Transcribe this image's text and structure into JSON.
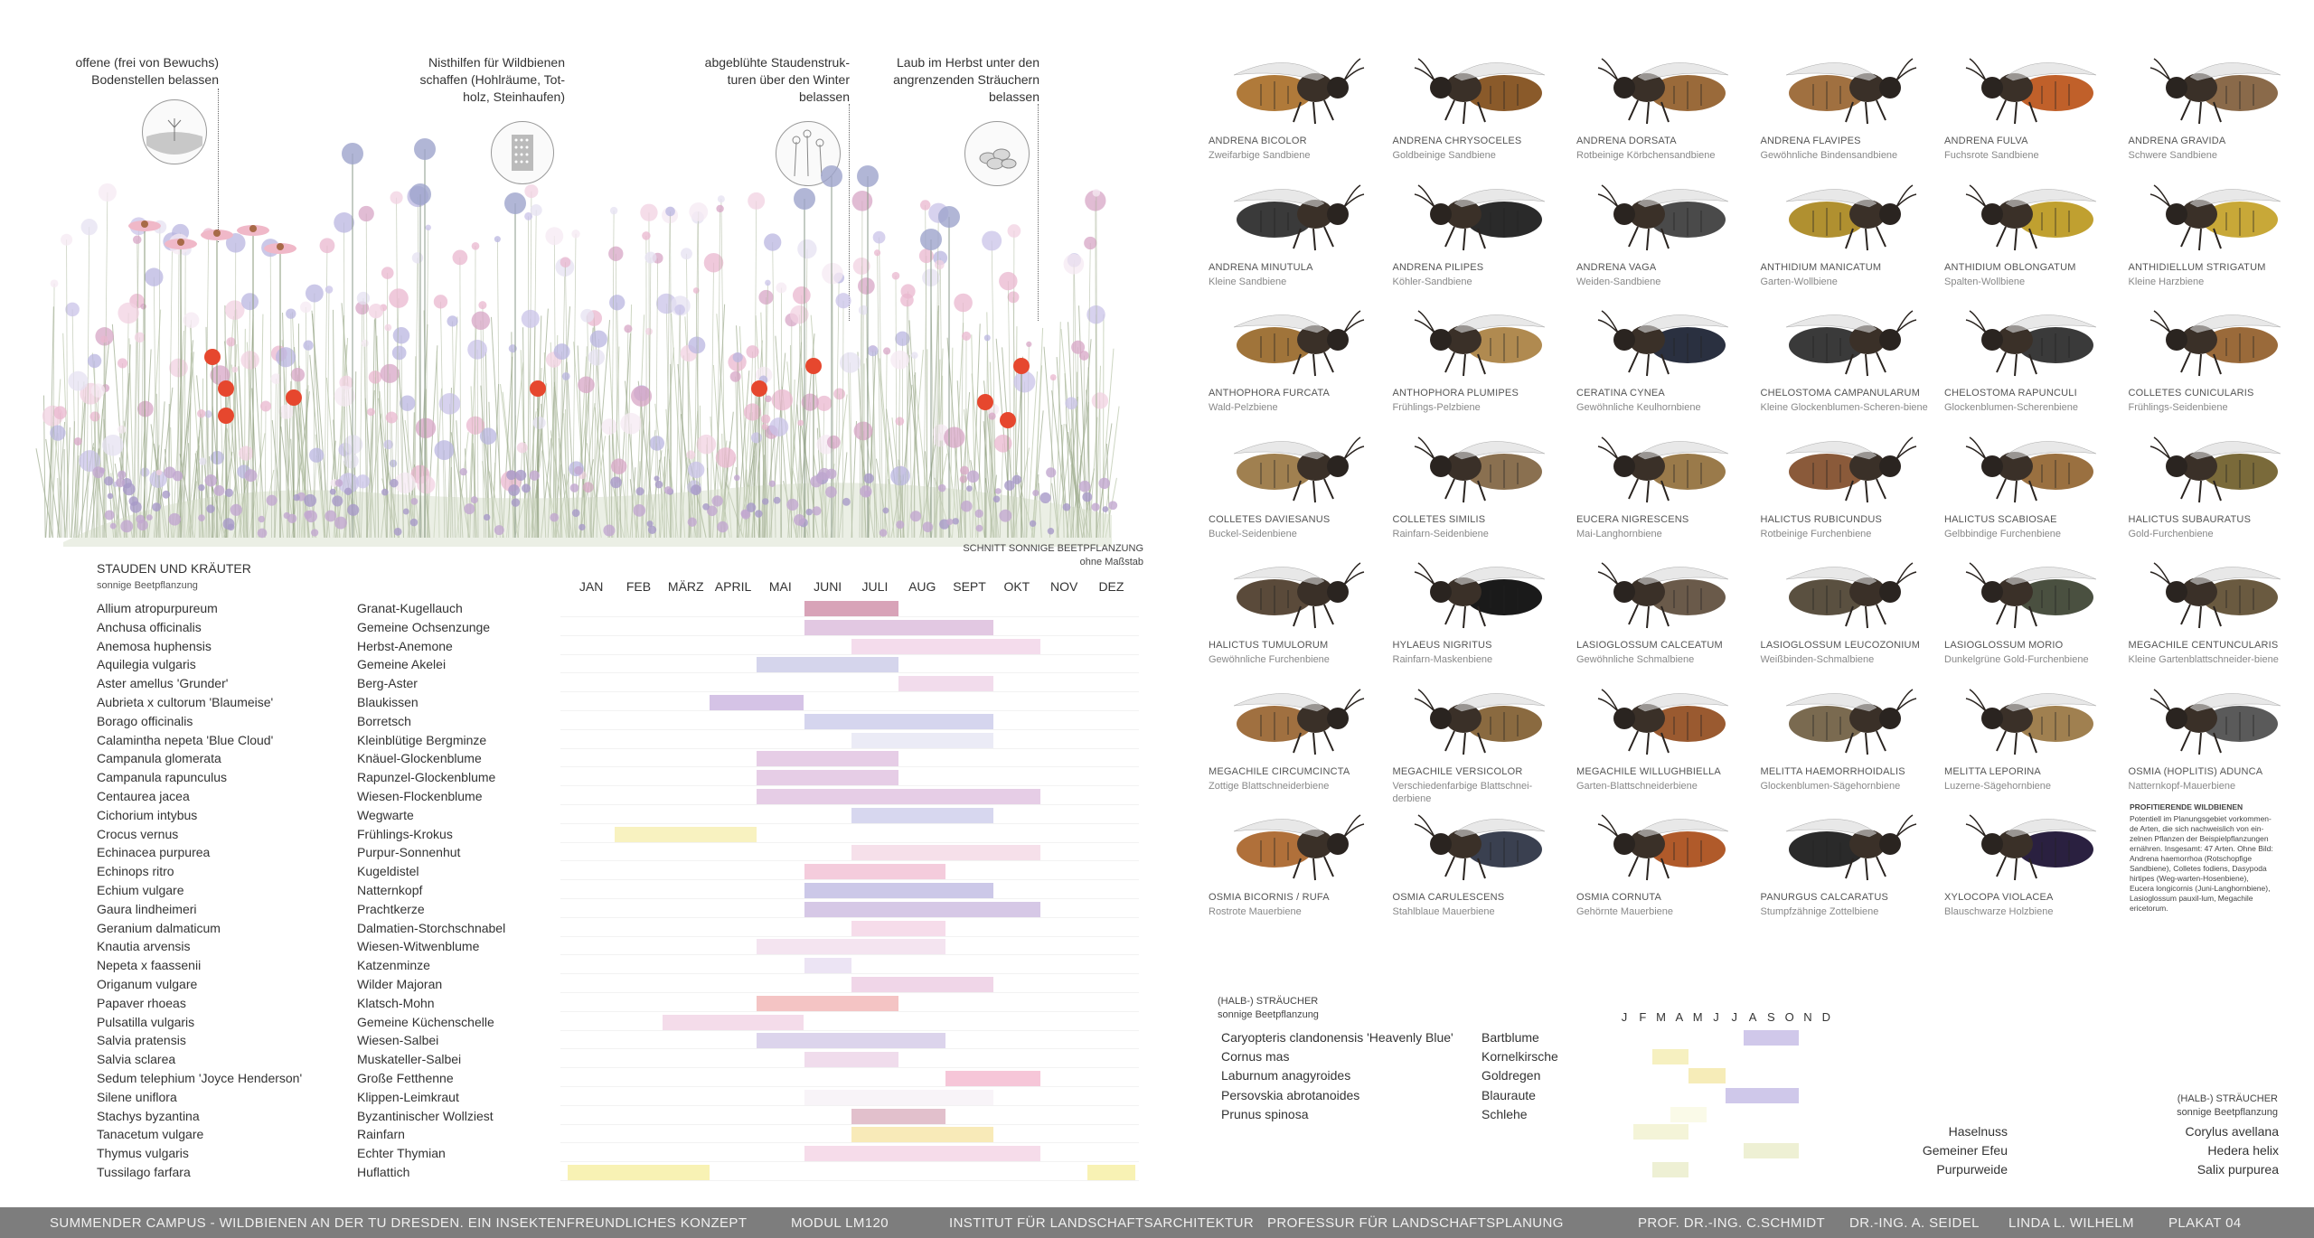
{
  "annotations": [
    {
      "lines": [
        "offene (frei von Bewuchs)",
        "Bodenstellen belassen"
      ],
      "icon": "soil-icon"
    },
    {
      "lines": [
        "Nisthilfen für Wildbienen",
        "schaffen (Hohlräume, Tot-",
        "holz, Steinhaufen)"
      ],
      "icon": "nest-aid-icon"
    },
    {
      "lines": [
        "abgeblühte Staudenstruk-",
        "turen über den Winter",
        "belassen"
      ],
      "icon": "seedhead-icon"
    },
    {
      "lines": [
        "Laub im Herbst unter den",
        "angrenzenden Sträuchern",
        "belassen"
      ],
      "icon": "leaf-litter-icon"
    }
  ],
  "section": {
    "caption_line1": "SCHNITT SONNIGE BEETPFLANZUNG",
    "caption_line2": "ohne Maßstab"
  },
  "perennials": {
    "title": "STAUDEN UND KRÄUTER",
    "subtitle": "sonnige Beetpflanzung",
    "months": [
      "JAN",
      "FEB",
      "MÄRZ",
      "APRIL",
      "MAI",
      "JUNI",
      "JULI",
      "AUG",
      "SEPT",
      "OKT",
      "NOV",
      "DEZ"
    ],
    "rows": [
      {
        "latin": "Allium atropurpureum",
        "german": "Granat-Kugellauch",
        "start": 5.0,
        "end": 7.0,
        "color": "#d8a3b8"
      },
      {
        "latin": "Anchusa officinalis",
        "german": "Gemeine Ochsenzunge",
        "start": 5.0,
        "end": 9.0,
        "color": "#e2c8e2"
      },
      {
        "latin": "Anemosa huphensis",
        "german": "Herbst-Anemone",
        "start": 6.0,
        "end": 10.0,
        "color": "#f4dcec"
      },
      {
        "latin": "Aquilegia vulgaris",
        "german": "Gemeine Akelei",
        "start": 4.0,
        "end": 7.0,
        "color": "#d5d5ec"
      },
      {
        "latin": "Aster amellus 'Grunder'",
        "german": "Berg-Aster",
        "start": 7.0,
        "end": 9.0,
        "color": "#f2dcec"
      },
      {
        "latin": "Aubrieta x cultorum 'Blaumeise'",
        "german": "Blaukissen",
        "start": 3.0,
        "end": 5.0,
        "color": "#d5c3e6"
      },
      {
        "latin": "Borago officinalis",
        "german": "Borretsch",
        "start": 5.0,
        "end": 9.0,
        "color": "#d5d5ee"
      },
      {
        "latin": "Calamintha nepeta 'Blue Cloud'",
        "german": "Kleinblütige Bergminze",
        "start": 6.0,
        "end": 9.0,
        "color": "#ebebf6"
      },
      {
        "latin": "Campanula glomerata",
        "german": "Knäuel-Glockenblume",
        "start": 4.0,
        "end": 7.0,
        "color": "#e6cde6"
      },
      {
        "latin": "Campanula rapunculus",
        "german": "Rapunzel-Glockenblume",
        "start": 4.0,
        "end": 7.0,
        "color": "#e6cde6"
      },
      {
        "latin": "Centaurea jacea",
        "german": "Wiesen-Flockenblume",
        "start": 4.0,
        "end": 10.0,
        "color": "#e6cde6"
      },
      {
        "latin": "Cichorium intybus",
        "german": "Wegwarte",
        "start": 6.0,
        "end": 9.0,
        "color": "#d7d7ef"
      },
      {
        "latin": "Crocus vernus",
        "german": "Frühlings-Krokus",
        "start": 1.0,
        "end": 4.0,
        "color": "#f8f2c0"
      },
      {
        "latin": "Echinacea purpurea",
        "german": "Purpur-Sonnenhut",
        "start": 6.0,
        "end": 10.0,
        "color": "#f6e0ea"
      },
      {
        "latin": "Echinops ritro",
        "german": "Kugeldistel",
        "start": 5.0,
        "end": 8.0,
        "color": "#f4ccdc"
      },
      {
        "latin": "Echium vulgare",
        "german": "Natternkopf",
        "start": 5.0,
        "end": 9.0,
        "color": "#ccc8e8"
      },
      {
        "latin": "Gaura lindheimeri",
        "german": "Prachtkerze",
        "start": 5.0,
        "end": 10.0,
        "color": "#d6c8e6"
      },
      {
        "latin": "Geranium dalmaticum",
        "german": "Dalmatien-Storchschnabel",
        "start": 6.0,
        "end": 8.0,
        "color": "#f6dcea"
      },
      {
        "latin": "Knautia arvensis",
        "german": "Wiesen-Witwenblume",
        "start": 4.0,
        "end": 8.0,
        "color": "#f4e4f0"
      },
      {
        "latin": "Nepeta x faassenii",
        "german": "Katzenminze",
        "start": 5.0,
        "end": 6.0,
        "color": "#ece4f4"
      },
      {
        "latin": "Origanum vulgare",
        "german": "Wilder Majoran",
        "start": 6.0,
        "end": 9.0,
        "color": "#f0d6e8"
      },
      {
        "latin": "Papaver rhoeas",
        "german": "Klatsch-Mohn",
        "start": 4.0,
        "end": 7.0,
        "color": "#f4c4c4"
      },
      {
        "latin": "Pulsatilla vulgaris",
        "german": "Gemeine Küchenschelle",
        "start": 2.0,
        "end": 5.0,
        "color": "#f4dcea"
      },
      {
        "latin": "Salvia pratensis",
        "german": "Wiesen-Salbei",
        "start": 4.0,
        "end": 8.0,
        "color": "#dcd4ec"
      },
      {
        "latin": "Salvia sclarea",
        "german": "Muskateller-Salbei",
        "start": 5.0,
        "end": 7.0,
        "color": "#f0dcec"
      },
      {
        "latin": "Sedum telephium 'Joyce Henderson'",
        "german": "Große Fetthenne",
        "start": 8.0,
        "end": 10.0,
        "color": "#f6c6d8"
      },
      {
        "latin": "Silene uniflora",
        "german": "Klippen-Leimkraut",
        "start": 5.0,
        "end": 9.0,
        "color": "#f8f4f8"
      },
      {
        "latin": "Stachys byzantina",
        "german": "Byzantinischer Wollziest",
        "start": 6.0,
        "end": 8.0,
        "color": "#e2c0cc"
      },
      {
        "latin": "Tanacetum vulgare",
        "german": "Rainfarn",
        "start": 6.0,
        "end": 9.0,
        "color": "#f8eab8"
      },
      {
        "latin": "Thymus vulgaris",
        "german": "Echter Thymian",
        "start": 5.0,
        "end": 10.0,
        "color": "#f6dcea"
      },
      {
        "latin": "Tussilago farfara",
        "german": "Huflattich",
        "start": 0.0,
        "end": 3.0,
        "color": "#f8f2b4",
        "start2": 11.0,
        "end2": 12.0
      }
    ]
  },
  "bees": [
    {
      "name": "ANDRENA BICOLOR",
      "common": "Zweifarbige Sandbiene",
      "color": "#b07a3a"
    },
    {
      "name": "ANDRENA CHRYSOCELES",
      "common": "Goldbeinige Sandbiene",
      "color": "#8a5a2a"
    },
    {
      "name": "ANDRENA DORSATA",
      "common": "Rotbeinige Körbchensandbiene",
      "color": "#9a6a3a"
    },
    {
      "name": "ANDRENA FLAVIPES",
      "common": "Gewöhnliche Bindensandbiene",
      "color": "#a07040"
    },
    {
      "name": "ANDRENA FULVA",
      "common": "Fuchsrote Sandbiene",
      "color": "#c0602a"
    },
    {
      "name": "ANDRENA GRAVIDA",
      "common": "Schwere Sandbiene",
      "color": "#8a6a4a"
    },
    {
      "name": "ANDRENA MINUTULA",
      "common": "Kleine Sandbiene",
      "color": "#3a3a3a"
    },
    {
      "name": "ANDRENA PILIPES",
      "common": "Köhler-Sandbiene",
      "color": "#2a2a2a"
    },
    {
      "name": "ANDRENA VAGA",
      "common": "Weiden-Sandbiene",
      "color": "#4a4a4a"
    },
    {
      "name": "ANTHIDIUM MANICATUM",
      "common": "Garten-Wollbiene",
      "color": "#b09030"
    },
    {
      "name": "ANTHIDIUM OBLONGATUM",
      "common": "Spalten-Wollbiene",
      "color": "#c0a030"
    },
    {
      "name": "ANTHIDIELLUM STRIGATUM",
      "common": "Kleine Harzbiene",
      "color": "#c8a838"
    },
    {
      "name": "ANTHOPHORA FURCATA",
      "common": "Wald-Pelzbiene",
      "color": "#a0743a"
    },
    {
      "name": "ANTHOPHORA PLUMIPES",
      "common": "Frühlings-Pelzbiene",
      "color": "#b08a50"
    },
    {
      "name": "CERATINA CYNEA",
      "common": "Gewöhnliche Keulhornbiene",
      "color": "#2a3040"
    },
    {
      "name": "CHELOSTOMA CAMPANULARUM",
      "common": "Kleine Glockenblumen-Scheren-biene",
      "color": "#3a3a3a"
    },
    {
      "name": "CHELOSTOMA RAPUNCULI",
      "common": "Glockenblumen-Scherenbiene",
      "color": "#3a3a3a"
    },
    {
      "name": "COLLETES CUNICULARIS",
      "common": "Frühlings-Seidenbiene",
      "color": "#9a6a3a"
    },
    {
      "name": "COLLETES DAVIESANUS",
      "common": "Buckel-Seidenbiene",
      "color": "#a08050"
    },
    {
      "name": "COLLETES SIMILIS",
      "common": "Rainfarn-Seidenbiene",
      "color": "#8a7050"
    },
    {
      "name": "EUCERA NIGRESCENS",
      "common": "Mai-Langhornbiene",
      "color": "#9a7a4a"
    },
    {
      "name": "HALICTUS RUBICUNDUS",
      "common": "Rotbeinige Furchenbiene",
      "color": "#8a5a3a"
    },
    {
      "name": "HALICTUS SCABIOSAE",
      "common": "Gelbbindige Furchenbiene",
      "color": "#9a7040"
    },
    {
      "name": "HALICTUS SUBAURATUS",
      "common": "Gold-Furchenbiene",
      "color": "#7a6a3a"
    },
    {
      "name": "HALICTUS TUMULORUM",
      "common": "Gewöhnliche Furchenbiene",
      "color": "#5a4a3a"
    },
    {
      "name": "HYLAEUS NIGRITUS",
      "common": "Rainfarn-Maskenbiene",
      "color": "#1a1a1a"
    },
    {
      "name": "LASIOGLOSSUM CALCEATUM",
      "common": "Gewöhnliche Schmalbiene",
      "color": "#6a5a4a"
    },
    {
      "name": "LASIOGLOSSUM LEUCOZONIUM",
      "common": "Weißbinden-Schmalbiene",
      "color": "#5a5040"
    },
    {
      "name": "LASIOGLOSSUM MORIO",
      "common": "Dunkelgrüne Gold-Furchenbiene",
      "color": "#4a5040"
    },
    {
      "name": "MEGACHILE CENTUNCULARIS",
      "common": "Kleine Gartenblattschneider-biene",
      "color": "#6a5a40"
    },
    {
      "name": "MEGACHILE CIRCUMCINCTA",
      "common": "Zottige Blattschneiderbiene",
      "color": "#a07040"
    },
    {
      "name": "MEGACHILE VERSICOLOR",
      "common": "Verschiedenfarbige Blattschnei-derbiene",
      "color": "#8a6a40"
    },
    {
      "name": "MEGACHILE WILLUGHBIELLA",
      "common": "Garten-Blattschneiderbiene",
      "color": "#9a5a30"
    },
    {
      "name": "MELITTA HAEMORRHOIDALIS",
      "common": "Glockenblumen-Sägehornbiene",
      "color": "#7a6a50"
    },
    {
      "name": "MELITTA LEPORINA",
      "common": "Luzerne-Sägehornbiene",
      "color": "#a08050"
    },
    {
      "name": "OSMIA (HOPLITIS) ADUNCA",
      "common": "Natternkopf-Mauerbiene",
      "color": "#5a5a5a"
    },
    {
      "name": "OSMIA BICORNIS / RUFA",
      "common": "Rostrote Mauerbiene",
      "color": "#b0703a"
    },
    {
      "name": "OSMIA CARULESCENS",
      "common": "Stahlblaue Mauerbiene",
      "color": "#3a4050"
    },
    {
      "name": "OSMIA CORNUTA",
      "common": "Gehörnte Mauerbiene",
      "color": "#b05a2a"
    },
    {
      "name": "PANURGUS CALCARATUS",
      "common": "Stumpfzähnige Zottelbiene",
      "color": "#2a2a2a"
    },
    {
      "name": "XYLOCOPA VIOLACEA",
      "common": "Blauschwarze Holzbiene",
      "color": "#2a2040"
    }
  ],
  "bee_note": {
    "title": "PROFITIERENDE WILDBIENEN",
    "text": "Potentiell im Planungsgebiet vorkommen-de Arten, die sich nachweislich von ein-zelnen Pflanzen der Beispielpflanzungen ernähren. Insgesamt: 47 Arten. Ohne Bild: Andrena haemorrhoa (Rotschopfige Sandbiene), Colletes fodiens, Dasypoda hirtipes (Weg-warten-Hosenbiene), Eucera longicornis (Juni-Langhornbiene), Lasioglossum pauxil-lum, Megachile ericetorum."
  },
  "shrubs": {
    "title": "(HALB-) STRÄUCHER",
    "subtitle": "sonnige Beetpflanzung",
    "months": [
      "J",
      "F",
      "M",
      "A",
      "M",
      "J",
      "J",
      "A",
      "S",
      "O",
      "N",
      "D"
    ],
    "rows": [
      {
        "latin": "Caryopteris clandonensis 'Heavenly Blue'",
        "german": "Bartblume",
        "start": 7.0,
        "end": 10.0,
        "color": "#d0c8ea"
      },
      {
        "latin": "Cornus mas",
        "german": "Kornelkirsche",
        "start": 2.0,
        "end": 4.0,
        "color": "#f6f0c0"
      },
      {
        "latin": "Laburnum anagyroides",
        "german": "Goldregen",
        "start": 4.0,
        "end": 6.0,
        "color": "#f6ecb8"
      },
      {
        "latin": "Persovskia abrotanoides",
        "german": "Blauraute",
        "start": 6.0,
        "end": 10.0,
        "color": "#cfc8ea"
      },
      {
        "latin": "Prunus spinosa",
        "german": "Schlehe",
        "start": 3.0,
        "end": 5.0,
        "color": "#fafae8"
      }
    ],
    "right_title": "(HALB-) STRÄUCHER",
    "right_subtitle": "sonnige Beetpflanzung",
    "right_rows": [
      {
        "german": "Haselnuss",
        "latin": "Corylus avellana",
        "start": 1.0,
        "end": 4.0,
        "color": "#f4f4d8"
      },
      {
        "german": "Gemeiner Efeu",
        "latin": "Hedera helix",
        "start": 7.0,
        "end": 10.0,
        "color": "#eef0d4"
      },
      {
        "german": "Purpurweide",
        "latin": "Salix purpurea",
        "start": 2.0,
        "end": 4.0,
        "color": "#eef0d4"
      }
    ]
  },
  "footer": {
    "title": "SUMMENDER CAMPUS - WILDBIENEN AN DER TU DRESDEN. EIN INSEKTENFREUNDLICHES KONZEPT",
    "modul": "MODUL LM120",
    "institut": "INSTITUT FÜR LANDSCHAFTSARCHITEKTUR",
    "professur": "PROFESSUR FÜR LANDSCHAFTSPLANUNG",
    "prof": "PROF. DR.-ING. C.SCHMIDT",
    "dring": "DR.-ING. A. SEIDEL",
    "author": "LINDA L. WILHELM",
    "plakat": "PLAKAT 04"
  }
}
